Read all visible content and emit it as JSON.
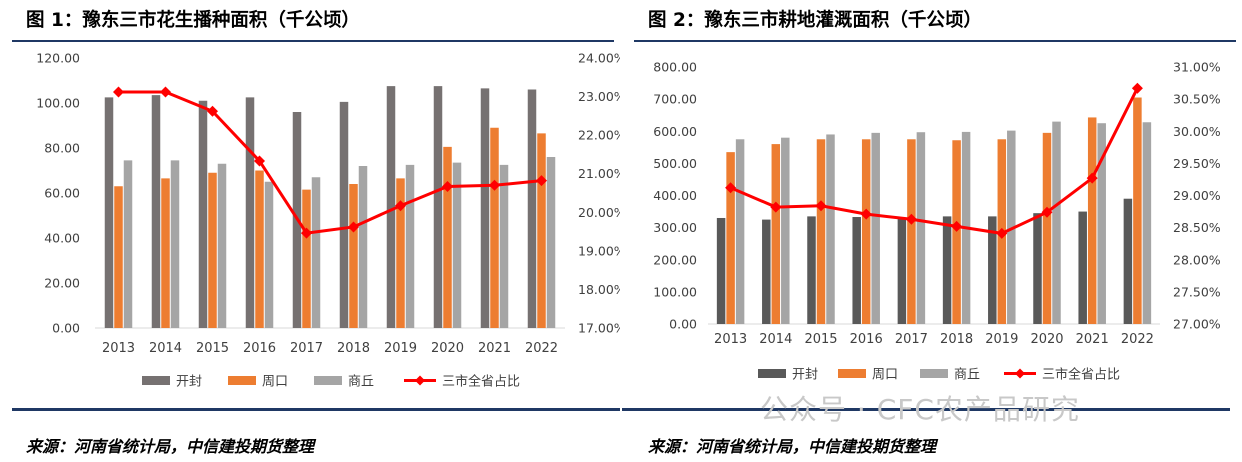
{
  "charts": [
    {
      "figure_title": "图 1：豫东三市花生播种面积（千公顷）",
      "source": "来源：河南省统计局，中信建投期货整理",
      "chart_data": {
        "type": "bar",
        "categories": [
          "2013",
          "2014",
          "2015",
          "2016",
          "2017",
          "2018",
          "2019",
          "2020",
          "2021",
          "2022"
        ],
        "series": [
          {
            "name": "开封",
            "type": "bar",
            "color": "#767171",
            "values": [
              102.5,
              103.5,
              101,
              102.5,
              96,
              100.5,
              107.5,
              107.5,
              106.5,
              106
            ]
          },
          {
            "name": "周口",
            "type": "bar",
            "color": "#ed7d31",
            "values": [
              63,
              66.5,
              69,
              70,
              61.5,
              64,
              66.5,
              80.5,
              89,
              86.5
            ]
          },
          {
            "name": "商丘",
            "type": "bar",
            "color": "#a5a5a5",
            "values": [
              74.5,
              74.5,
              73,
              65,
              67,
              72,
              72.5,
              73.5,
              72.5,
              76
            ]
          },
          {
            "name": "三市全省占比",
            "type": "line",
            "axis": "right",
            "color": "#ff0000",
            "values": [
              23.12,
              23.12,
              22.62,
              21.33,
              19.46,
              19.62,
              20.17,
              20.67,
              20.7,
              20.82
            ]
          }
        ],
        "y_left": {
          "min": 0,
          "max": 120,
          "step": 20,
          "ticks": [
            "0.00",
            "20.00",
            "40.00",
            "60.00",
            "80.00",
            "100.00",
            "120.00"
          ]
        },
        "y_right": {
          "min": 17,
          "max": 24,
          "step": 1,
          "ticks": [
            "17.00%",
            "18.00%",
            "19.00%",
            "20.00%",
            "21.00%",
            "22.00%",
            "23.00%",
            "24.00%"
          ]
        },
        "legend_position": "bottom",
        "grid": false
      }
    },
    {
      "figure_title": "图 2：豫东三市耕地灌溉面积（千公顷）",
      "source": "来源：河南省统计局，中信建投期货整理",
      "chart_data": {
        "type": "bar",
        "categories": [
          "2013",
          "2014",
          "2015",
          "2016",
          "2017",
          "2018",
          "2019",
          "2020",
          "2021",
          "2022"
        ],
        "series": [
          {
            "name": "开封",
            "type": "bar",
            "color": "#595959",
            "values": [
              330,
              325,
              335,
              333,
              328,
              335,
              335,
              345,
              350,
              390
            ]
          },
          {
            "name": "周口",
            "type": "bar",
            "color": "#ed7d31",
            "values": [
              535,
              560,
              575,
              575,
              575,
              572,
              575,
              595,
              643,
              705
            ]
          },
          {
            "name": "商丘",
            "type": "bar",
            "color": "#a5a5a5",
            "values": [
              575,
              580,
              590,
              595,
              597,
              598,
              602,
              630,
              625,
              628
            ]
          },
          {
            "name": "三市全省占比",
            "type": "line",
            "axis": "right",
            "color": "#ff0000",
            "values": [
              29.12,
              28.82,
              28.84,
              28.71,
              28.63,
              28.52,
              28.41,
              28.74,
              29.27,
              30.67
            ]
          }
        ],
        "y_left": {
          "min": 0,
          "max": 800,
          "step": 100,
          "ticks": [
            "0.00",
            "100.00",
            "200.00",
            "300.00",
            "400.00",
            "500.00",
            "600.00",
            "700.00",
            "800.00"
          ]
        },
        "y_right": {
          "min": 27,
          "max": 31,
          "step": 0.5,
          "ticks": [
            "27.00%",
            "27.50%",
            "28.00%",
            "28.50%",
            "29.00%",
            "29.50%",
            "30.00%",
            "30.50%",
            "31.00%"
          ]
        },
        "legend_position": "bottom",
        "grid": false
      }
    }
  ],
  "watermark": "公众号 · CFC农产品研究"
}
